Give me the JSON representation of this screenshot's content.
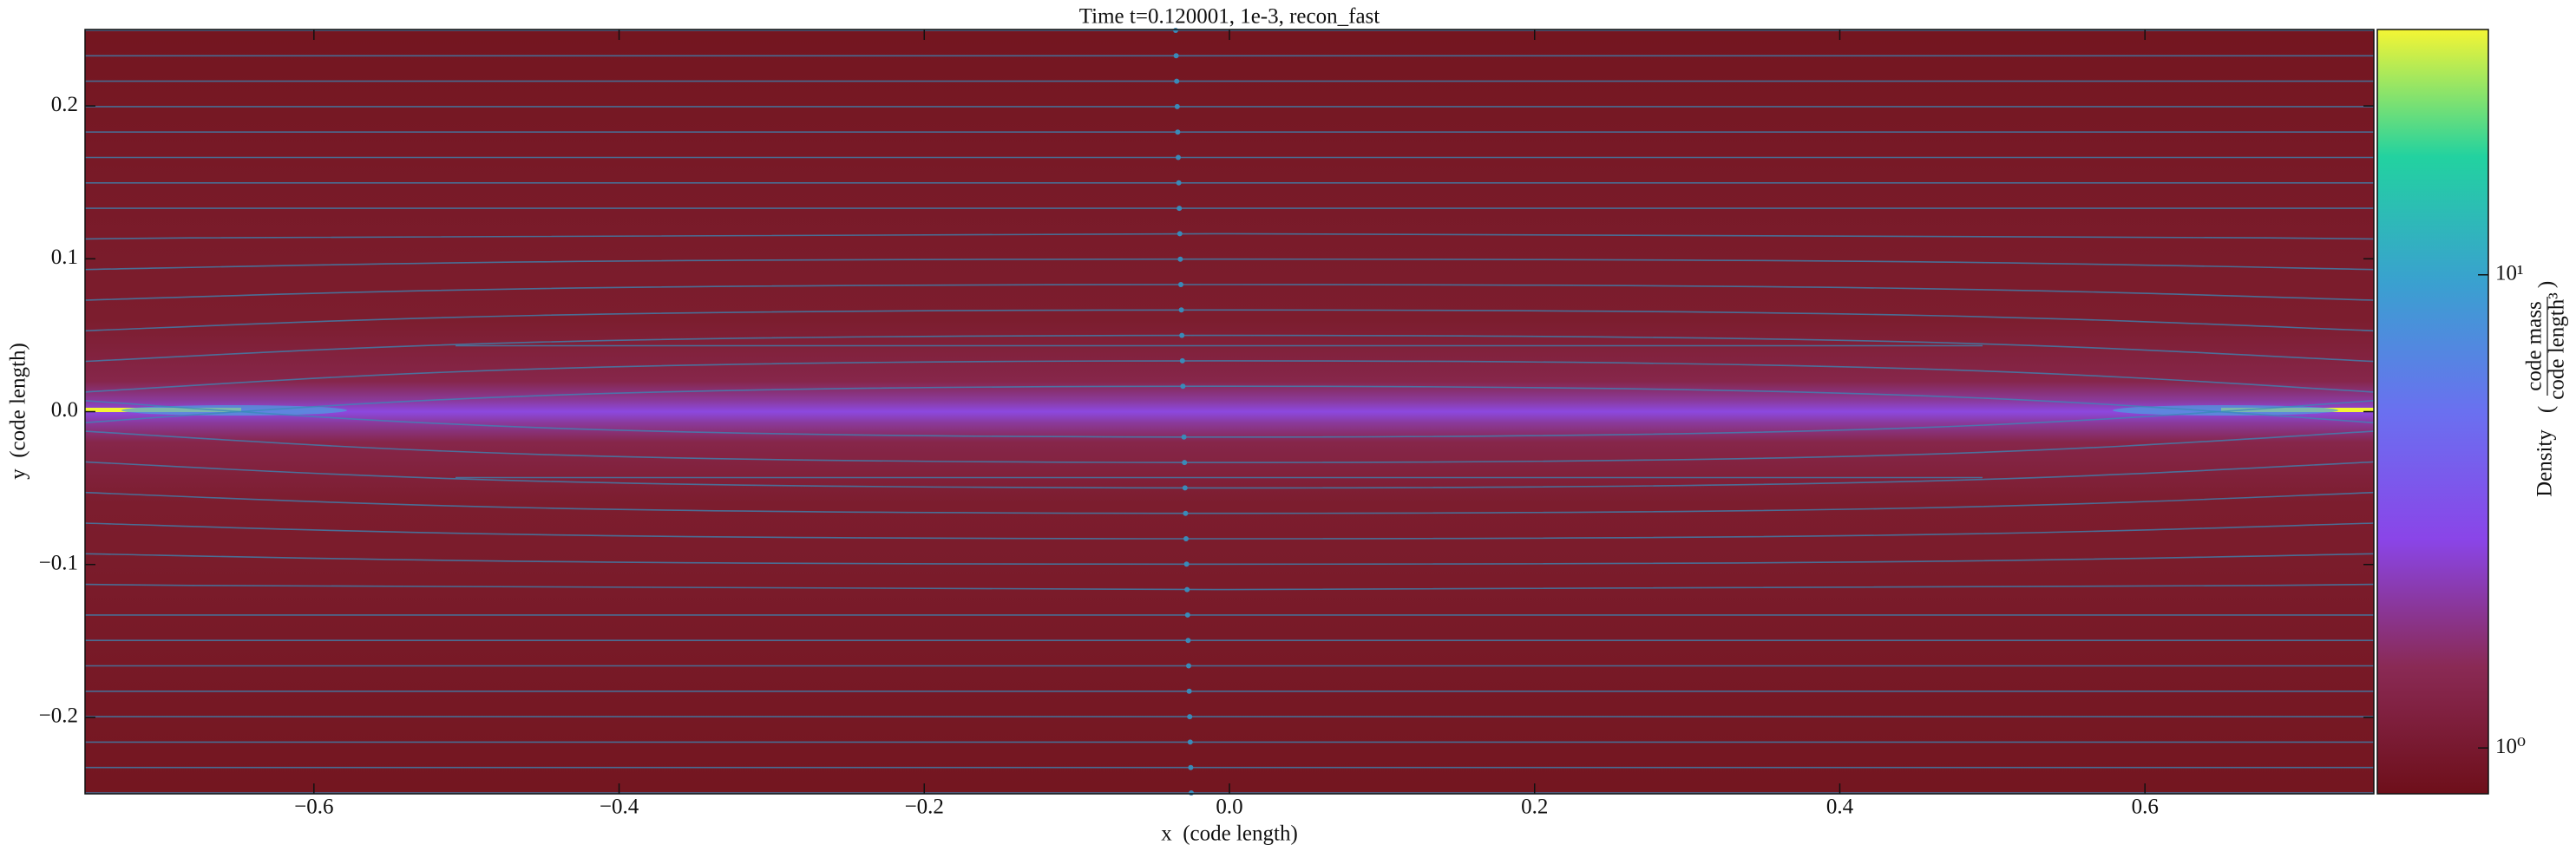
{
  "chart_data": {
    "type": "heatmap",
    "title": "Time t=0.120001, 1e-3, recon_fast",
    "x_label": "x  (code length)",
    "y_label": "y  (code length)",
    "xlim": [
      -0.75,
      0.75
    ],
    "ylim": [
      -0.25,
      0.25
    ],
    "xticks": [
      {
        "value": -0.6,
        "label": "−0.6"
      },
      {
        "value": -0.4,
        "label": "−0.4"
      },
      {
        "value": -0.2,
        "label": "−0.2"
      },
      {
        "value": 0,
        "label": "0.0"
      },
      0.2,
      0.4,
      0.6
    ],
    "yticks": [
      {
        "value": -0.2,
        "label": "−0.2"
      },
      {
        "value": -0.1,
        "label": "−0.1"
      },
      {
        "value": 0,
        "label": "0.0"
      },
      0.1,
      0.2
    ],
    "colorbar": {
      "label": "Density",
      "unit_numerator": "code mass",
      "unit_denominator": "code length³",
      "scale": "log",
      "lim": [
        0.8,
        33
      ],
      "ticks": [
        {
          "value": 1,
          "label": "10⁰"
        },
        {
          "value": 10,
          "label": "10¹"
        }
      ],
      "colormap": [
        "#6e0f1a",
        "#8a2a55",
        "#8a45e8",
        "#6a70f0",
        "#3aa0d0",
        "#22d2a0",
        "#f4f534"
      ]
    }
  }
}
